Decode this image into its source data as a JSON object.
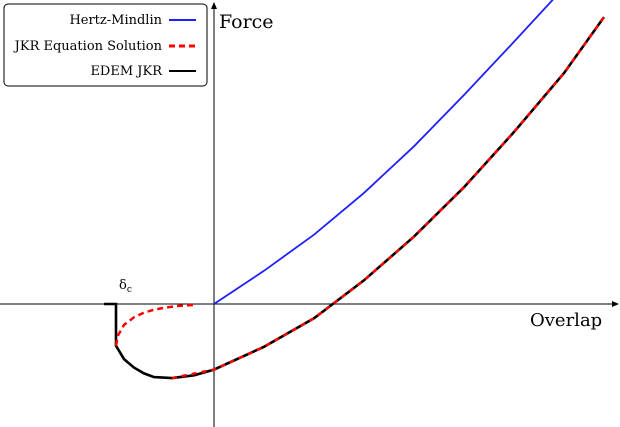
{
  "chart_data": {
    "type": "line",
    "xlabel": "Overlap",
    "ylabel": "Force",
    "annotation": "δc",
    "grid": false,
    "legend_position": "top-left",
    "xlim": [
      -2.4,
      4.3
    ],
    "ylim": [
      -1.3,
      3.3
    ],
    "series": [
      {
        "name": "Hertz-Mindlin",
        "color": "#1f1fff",
        "style": "solid",
        "x": [
          0,
          0.5,
          1.0,
          1.5,
          2.0,
          2.5,
          3.0,
          3.5,
          3.7
        ],
        "y": [
          0,
          0.35,
          0.73,
          1.17,
          1.66,
          2.2,
          2.76,
          3.33,
          3.57
        ]
      },
      {
        "name": "JKR Equation Solution",
        "color": "#ff0000",
        "style": "dashed",
        "x": [
          -0.98,
          -0.96,
          -0.9,
          -0.8,
          -0.7,
          -0.6,
          -0.5,
          -0.35,
          -0.2,
          -0.42,
          0,
          0.5,
          1.0,
          1.5,
          2.0,
          2.5,
          3.0,
          3.5,
          3.9
        ],
        "y": [
          -0.44,
          -0.33,
          -0.22,
          -0.14,
          -0.09,
          -0.06,
          -0.04,
          -0.02,
          -0.01,
          -0.78,
          -0.69,
          -0.45,
          -0.15,
          0.25,
          0.71,
          1.23,
          1.81,
          2.43,
          3.02
        ]
      },
      {
        "name": "EDEM JKR",
        "color": "#000000",
        "style": "solid",
        "x": [
          -1.1,
          -0.98,
          -0.98,
          -0.9,
          -0.8,
          -0.7,
          -0.6,
          -0.42,
          -0.2,
          0,
          0.5,
          1.0,
          1.5,
          2.0,
          2.5,
          3.0,
          3.5,
          3.9
        ],
        "y": [
          0,
          0,
          -0.44,
          -0.58,
          -0.67,
          -0.73,
          -0.77,
          -0.78,
          -0.75,
          -0.69,
          -0.45,
          -0.15,
          0.25,
          0.71,
          1.23,
          1.81,
          2.43,
          3.02
        ]
      }
    ]
  }
}
